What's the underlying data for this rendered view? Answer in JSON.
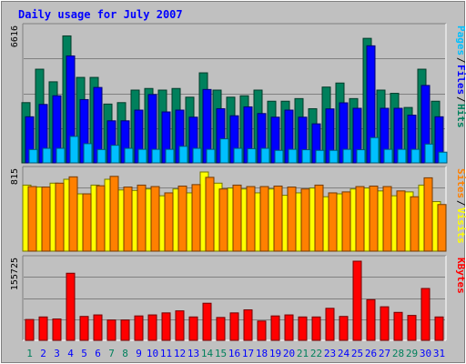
{
  "chart_data": [
    {
      "type": "bar",
      "panel": "hits-files-pages",
      "title": "Daily usage for July 2007",
      "categories": [
        "1",
        "2",
        "3",
        "4",
        "5",
        "6",
        "7",
        "8",
        "9",
        "10",
        "11",
        "12",
        "13",
        "14",
        "15",
        "16",
        "17",
        "18",
        "19",
        "20",
        "21",
        "22",
        "23",
        "24",
        "25",
        "26",
        "27",
        "28",
        "29",
        "30",
        "31"
      ],
      "y_max_label": "6616",
      "ylim": [
        0,
        6616
      ],
      "grid": true,
      "series": [
        {
          "name": "Hits",
          "color": "#00805c",
          "values": [
            2980,
            4634,
            4010,
            6280,
            4228,
            4228,
            2910,
            2980,
            3600,
            3680,
            3600,
            3680,
            3250,
            4454,
            3600,
            3250,
            3320,
            3600,
            3050,
            3050,
            3180,
            2680,
            3750,
            3950,
            3180,
            6160,
            3600,
            3440,
            2740,
            4634,
            3050
          ]
        },
        {
          "name": "Files",
          "color": "#0000ff",
          "values": [
            2280,
            2890,
            3320,
            5290,
            3130,
            3730,
            2080,
            2080,
            2610,
            3380,
            2520,
            2610,
            2260,
            3630,
            2680,
            2330,
            2770,
            2440,
            2260,
            2610,
            2260,
            1930,
            2670,
            2970,
            2700,
            5790,
            2700,
            2700,
            2360,
            3830,
            2280
          ]
        },
        {
          "name": "Pages",
          "color": "#00c0ff",
          "values": [
            660,
            720,
            720,
            1310,
            950,
            660,
            870,
            720,
            670,
            670,
            670,
            820,
            720,
            670,
            1190,
            720,
            700,
            720,
            620,
            670,
            650,
            620,
            620,
            670,
            650,
            1250,
            670,
            670,
            670,
            930,
            530
          ]
        }
      ],
      "legend": [
        "Pages",
        "Files",
        "Hits"
      ]
    },
    {
      "type": "bar",
      "panel": "visits-sites",
      "categories": [
        "1",
        "2",
        "3",
        "4",
        "5",
        "6",
        "7",
        "8",
        "9",
        "10",
        "11",
        "12",
        "13",
        "14",
        "15",
        "16",
        "17",
        "18",
        "19",
        "20",
        "21",
        "22",
        "23",
        "24",
        "25",
        "26",
        "27",
        "28",
        "29",
        "30",
        "31"
      ],
      "y_max_label": "815",
      "ylim": [
        0,
        815
      ],
      "grid": true,
      "series": [
        {
          "name": "Visits",
          "color": "#ffff00",
          "values": [
            680,
            660,
            700,
            740,
            590,
            680,
            740,
            630,
            625,
            640,
            570,
            640,
            600,
            815,
            700,
            650,
            640,
            600,
            640,
            575,
            600,
            650,
            560,
            590,
            640,
            650,
            620,
            570,
            610,
            680,
            510
          ]
        },
        {
          "name": "Sites",
          "color": "#ff8000",
          "values": [
            665,
            660,
            700,
            765,
            590,
            673,
            770,
            660,
            680,
            665,
            600,
            670,
            685,
            760,
            640,
            680,
            665,
            665,
            670,
            660,
            640,
            680,
            600,
            610,
            665,
            670,
            665,
            620,
            560,
            755,
            480
          ]
        }
      ],
      "legend": [
        "Sites",
        "Visits"
      ]
    },
    {
      "type": "bar",
      "panel": "kbytes",
      "categories": [
        "1",
        "2",
        "3",
        "4",
        "5",
        "6",
        "7",
        "8",
        "9",
        "10",
        "11",
        "12",
        "13",
        "14",
        "15",
        "16",
        "17",
        "18",
        "19",
        "20",
        "21",
        "22",
        "23",
        "24",
        "25",
        "26",
        "27",
        "28",
        "29",
        "30",
        "31"
      ],
      "y_max_label": "155725",
      "ylim": [
        0,
        155725
      ],
      "grid": true,
      "series": [
        {
          "name": "KBytes",
          "color": "#ff0000",
          "values": [
            41000,
            46000,
            42000,
            132000,
            47000,
            50000,
            40000,
            40000,
            48000,
            50000,
            54000,
            58000,
            46000,
            73000,
            45000,
            54000,
            60000,
            38000,
            48000,
            50000,
            46000,
            46000,
            63000,
            47000,
            155725,
            80000,
            66000,
            55000,
            49000,
            102000,
            46000
          ]
        }
      ],
      "legend": [
        "KBytes"
      ]
    }
  ],
  "x_labels": {
    "weekend_color": "#00805c",
    "weekday_color": "#0000ff",
    "weekend_days": [
      "1",
      "7",
      "8",
      "14",
      "15",
      "21",
      "22",
      "28",
      "29"
    ]
  },
  "colors": {
    "background": "#c0c0c0",
    "plot_background": "#c0c0c0",
    "title": "#0000ff"
  }
}
